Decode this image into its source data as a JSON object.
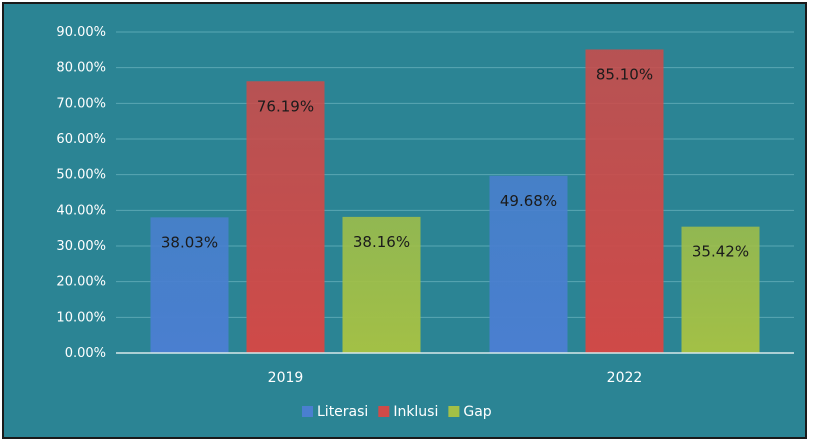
{
  "chart_data": {
    "type": "bar",
    "categories": [
      "2019",
      "2022"
    ],
    "series": [
      {
        "name": "Literasi",
        "values": [
          38.03,
          49.68
        ],
        "labels": [
          "38.03%",
          "49.68%"
        ],
        "color": "#4a7fd0"
      },
      {
        "name": "Inklusi",
        "values": [
          76.19,
          85.1
        ],
        "labels": [
          "76.19%",
          "85.10%"
        ],
        "color": "#cf4a48"
      },
      {
        "name": "Gap",
        "values": [
          38.16,
          35.42
        ],
        "labels": [
          "38.16%",
          "35.42%"
        ],
        "color": "#a3c046"
      }
    ],
    "yticks": [
      "0.00%",
      "10.00%",
      "20.00%",
      "30.00%",
      "40.00%",
      "50.00%",
      "60.00%",
      "70.00%",
      "80.00%",
      "90.00%"
    ],
    "ylim": [
      0,
      90
    ],
    "grid": true,
    "legend_position": "bottom",
    "background_color": "#2b8494",
    "grid_color": "#5aa7b3"
  }
}
